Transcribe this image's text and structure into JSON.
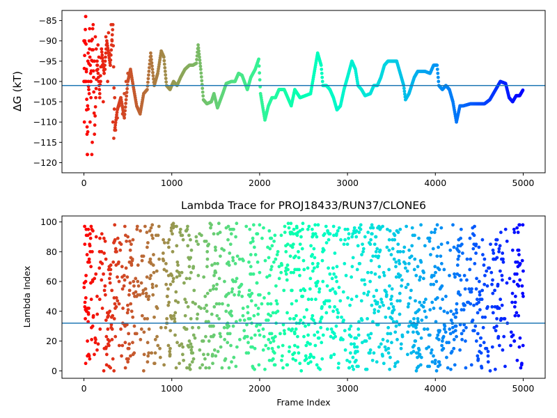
{
  "chart_data": [
    {
      "type": "scatter",
      "title": "",
      "xlabel": "",
      "ylabel": "ΔG (kT)",
      "xlim": [
        -250,
        5250
      ],
      "ylim": [
        -122.5,
        -82.5
      ],
      "xticks": [
        0,
        1000,
        2000,
        3000,
        4000,
        5000
      ],
      "yticks": [
        -120,
        -115,
        -110,
        -105,
        -100,
        -95,
        -90,
        -85
      ],
      "hline": -101,
      "colormap": "rainbow-reversed (red at frame 0, violet at frame 5000)",
      "description": "ΔG estimate vs frame index; dense path trace with scattered early points",
      "trace_keypoints": [
        [
          0,
          -100
        ],
        [
          20,
          -84
        ],
        [
          40,
          -118
        ],
        [
          60,
          -90
        ],
        [
          80,
          -100
        ],
        [
          100,
          -87
        ],
        [
          120,
          -113
        ],
        [
          150,
          -95
        ],
        [
          180,
          -103
        ],
        [
          200,
          -92
        ],
        [
          230,
          -98
        ],
        [
          260,
          -90
        ],
        [
          300,
          -96
        ],
        [
          330,
          -86
        ],
        [
          350,
          -112
        ],
        [
          380,
          -107
        ],
        [
          420,
          -104
        ],
        [
          460,
          -109
        ],
        [
          500,
          -100
        ],
        [
          530,
          -97
        ],
        [
          560,
          -101
        ],
        [
          600,
          -106
        ],
        [
          640,
          -108
        ],
        [
          680,
          -103
        ],
        [
          720,
          -102
        ],
        [
          760,
          -93
        ],
        [
          800,
          -101
        ],
        [
          840,
          -98
        ],
        [
          880,
          -92.5
        ],
        [
          910,
          -94
        ],
        [
          940,
          -101
        ],
        [
          980,
          -102
        ],
        [
          1020,
          -100
        ],
        [
          1060,
          -101
        ],
        [
          1100,
          -99
        ],
        [
          1150,
          -97
        ],
        [
          1200,
          -96
        ],
        [
          1240,
          -96
        ],
        [
          1280,
          -95.5
        ],
        [
          1300,
          -91
        ],
        [
          1330,
          -97
        ],
        [
          1360,
          -104.5
        ],
        [
          1400,
          -105.5
        ],
        [
          1450,
          -105
        ],
        [
          1480,
          -103
        ],
        [
          1520,
          -106.5
        ],
        [
          1580,
          -103
        ],
        [
          1620,
          -100.5
        ],
        [
          1680,
          -100
        ],
        [
          1720,
          -100
        ],
        [
          1760,
          -98
        ],
        [
          1800,
          -98.5
        ],
        [
          1860,
          -102
        ],
        [
          1900,
          -99
        ],
        [
          1950,
          -97
        ],
        [
          1990,
          -94.5
        ],
        [
          2010,
          -103
        ],
        [
          2060,
          -109.5
        ],
        [
          2100,
          -106
        ],
        [
          2140,
          -104
        ],
        [
          2180,
          -104
        ],
        [
          2220,
          -102
        ],
        [
          2280,
          -102
        ],
        [
          2320,
          -104
        ],
        [
          2360,
          -106
        ],
        [
          2400,
          -102
        ],
        [
          2460,
          -104
        ],
        [
          2520,
          -103.5
        ],
        [
          2580,
          -103
        ],
        [
          2620,
          -98
        ],
        [
          2660,
          -93
        ],
        [
          2700,
          -96
        ],
        [
          2720,
          -101
        ],
        [
          2760,
          -101
        ],
        [
          2800,
          -102
        ],
        [
          2840,
          -104
        ],
        [
          2880,
          -107
        ],
        [
          2920,
          -106
        ],
        [
          2960,
          -102
        ],
        [
          3000,
          -99
        ],
        [
          3050,
          -95
        ],
        [
          3090,
          -97
        ],
        [
          3120,
          -101
        ],
        [
          3160,
          -102
        ],
        [
          3200,
          -103.5
        ],
        [
          3260,
          -103
        ],
        [
          3300,
          -101
        ],
        [
          3340,
          -101
        ],
        [
          3380,
          -99
        ],
        [
          3420,
          -96
        ],
        [
          3460,
          -95
        ],
        [
          3500,
          -95
        ],
        [
          3560,
          -95
        ],
        [
          3600,
          -98
        ],
        [
          3640,
          -101
        ],
        [
          3660,
          -104.5
        ],
        [
          3700,
          -103
        ],
        [
          3760,
          -99
        ],
        [
          3800,
          -97.5
        ],
        [
          3880,
          -97.5
        ],
        [
          3940,
          -98
        ],
        [
          3980,
          -96
        ],
        [
          4020,
          -96
        ],
        [
          4040,
          -101
        ],
        [
          4080,
          -102
        ],
        [
          4120,
          -101
        ],
        [
          4160,
          -102
        ],
        [
          4200,
          -105
        ],
        [
          4240,
          -110
        ],
        [
          4280,
          -106
        ],
        [
          4320,
          -106
        ],
        [
          4400,
          -105.5
        ],
        [
          4480,
          -105.5
        ],
        [
          4560,
          -105.5
        ],
        [
          4620,
          -104.5
        ],
        [
          4660,
          -103
        ],
        [
          4700,
          -101.5
        ],
        [
          4740,
          -100
        ],
        [
          4800,
          -100.5
        ],
        [
          4840,
          -104
        ],
        [
          4880,
          -105
        ],
        [
          4920,
          -103.5
        ],
        [
          4960,
          -103.5
        ],
        [
          5000,
          -102
        ]
      ],
      "early_points": [
        [
          0,
          -90
        ],
        [
          2,
          -100
        ],
        [
          5,
          -110
        ],
        [
          10,
          -90
        ],
        [
          15,
          -100
        ],
        [
          20,
          -84
        ],
        [
          25,
          -100
        ],
        [
          28,
          -97
        ],
        [
          30,
          -107
        ],
        [
          35,
          -113
        ],
        [
          38,
          -118
        ],
        [
          42,
          -106
        ],
        [
          45,
          -95
        ],
        [
          48,
          -93
        ],
        [
          50,
          -100
        ],
        [
          55,
          -102
        ],
        [
          60,
          -103
        ],
        [
          65,
          -87
        ],
        [
          70,
          -110
        ],
        [
          75,
          -100
        ],
        [
          80,
          -104
        ],
        [
          85,
          -90
        ],
        [
          90,
          -118
        ],
        [
          95,
          -115
        ],
        [
          100,
          -95
        ],
        [
          105,
          -86
        ],
        [
          110,
          -99
        ],
        [
          120,
          -95
        ],
        [
          130,
          -89
        ],
        [
          140,
          -92
        ],
        [
          150,
          -96
        ],
        [
          160,
          -91
        ],
        [
          170,
          -94
        ],
        [
          180,
          -104
        ],
        [
          190,
          -100
        ],
        [
          200,
          -92
        ],
        [
          210,
          -96
        ],
        [
          220,
          -105
        ],
        [
          230,
          -98
        ],
        [
          240,
          -97
        ],
        [
          250,
          -89
        ],
        [
          260,
          -91
        ],
        [
          270,
          -100
        ],
        [
          280,
          -88
        ],
        [
          290,
          -93
        ],
        [
          300,
          -96
        ],
        [
          310,
          -86
        ],
        [
          320,
          -90
        ],
        [
          330,
          -110
        ],
        [
          340,
          -114
        ],
        [
          350,
          -104
        ],
        [
          360,
          -112
        ],
        [
          380,
          -109
        ],
        [
          400,
          -106
        ],
        [
          420,
          -104
        ],
        [
          440,
          -108
        ],
        [
          460,
          -103
        ],
        [
          480,
          -100
        ],
        [
          500,
          -98
        ]
      ]
    },
    {
      "type": "scatter",
      "title": "Lambda Trace for PROJ18433/RUN37/CLONE6",
      "xlabel": "Frame Index",
      "ylabel": "Lambda Index",
      "xlim": [
        -250,
        5250
      ],
      "ylim": [
        -5,
        104
      ],
      "xticks": [
        0,
        1000,
        2000,
        3000,
        4000,
        5000
      ],
      "yticks": [
        0,
        20,
        40,
        60,
        80,
        100
      ],
      "hline": 32,
      "colormap": "rainbow-reversed (red at frame 0, violet at frame 5000)",
      "description": "Lambda index (0-100) visited at each frame; dense vertical bands spanning 0-99 throughout frames 0-5000",
      "frame_range": [
        0,
        5000
      ],
      "lambda_range": [
        0,
        99
      ],
      "sample_points": [
        [
          10,
          85
        ],
        [
          20,
          60
        ],
        [
          30,
          40
        ],
        [
          40,
          20
        ],
        [
          50,
          95
        ],
        [
          60,
          10
        ],
        [
          80,
          70
        ],
        [
          100,
          30
        ],
        [
          150,
          50
        ],
        [
          200,
          80
        ],
        [
          250,
          15
        ],
        [
          300,
          65
        ],
        [
          400,
          45
        ],
        [
          500,
          90
        ],
        [
          600,
          25
        ],
        [
          700,
          55
        ],
        [
          800,
          5
        ],
        [
          900,
          75
        ],
        [
          1000,
          35
        ],
        [
          1100,
          95
        ],
        [
          1200,
          20
        ],
        [
          1300,
          85
        ],
        [
          1400,
          40
        ],
        [
          1500,
          10
        ],
        [
          1600,
          60
        ],
        [
          1700,
          30
        ],
        [
          1800,
          50
        ],
        [
          1900,
          70
        ],
        [
          2000,
          98
        ],
        [
          2100,
          15
        ],
        [
          2200,
          45
        ],
        [
          2300,
          80
        ],
        [
          2400,
          25
        ],
        [
          2500,
          55
        ],
        [
          2600,
          90
        ],
        [
          2700,
          35
        ],
        [
          2800,
          65
        ],
        [
          2900,
          5
        ],
        [
          3000,
          85
        ],
        [
          3100,
          90
        ],
        [
          3200,
          20
        ],
        [
          3300,
          50
        ],
        [
          3400,
          10
        ],
        [
          3500,
          45
        ],
        [
          3600,
          95
        ],
        [
          3700,
          30
        ],
        [
          3800,
          70
        ],
        [
          3900,
          15
        ],
        [
          4000,
          95
        ],
        [
          4100,
          40
        ],
        [
          4200,
          98
        ],
        [
          4300,
          25
        ],
        [
          4400,
          75
        ],
        [
          4500,
          60
        ],
        [
          4600,
          10
        ],
        [
          4700,
          35
        ],
        [
          4800,
          95
        ],
        [
          4900,
          20
        ],
        [
          5000,
          50
        ]
      ]
    }
  ],
  "colors": {
    "hline": "#1f77b4",
    "axes": "#000000",
    "background": "#ffffff"
  }
}
